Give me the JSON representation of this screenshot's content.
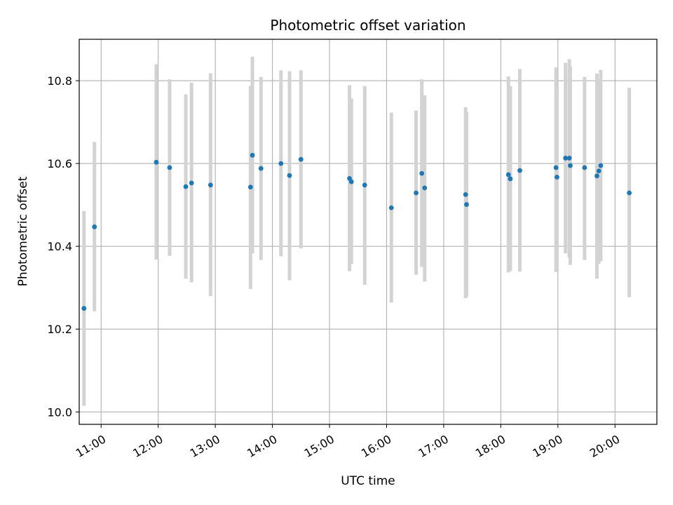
{
  "chart_data": {
    "type": "scatter",
    "title": "Photometric offset variation",
    "xlabel": "UTC time",
    "ylabel": "Photometric offset",
    "xlim": [
      "10:37",
      "20:44"
    ],
    "ylim": [
      9.97,
      10.9
    ],
    "grid": true,
    "x_ticks": [
      "11:00",
      "12:00",
      "13:00",
      "14:00",
      "15:00",
      "16:00",
      "17:00",
      "18:00",
      "19:00",
      "20:00"
    ],
    "y_ticks": [
      10.0,
      10.2,
      10.4,
      10.6,
      10.8
    ],
    "y_tick_labels": [
      "10.0",
      "10.2",
      "10.4",
      "10.6",
      "10.8"
    ],
    "point_color": "#1f77b4",
    "errorbar_color": "#d3d3d3",
    "points": [
      {
        "x": "10:42",
        "y": 10.25,
        "lo": 10.015,
        "hi": 10.485
      },
      {
        "x": "10:53",
        "y": 10.447,
        "lo": 10.243,
        "hi": 10.652
      },
      {
        "x": "11:58",
        "y": 10.603,
        "lo": 10.368,
        "hi": 10.84
      },
      {
        "x": "12:12",
        "y": 10.59,
        "lo": 10.377,
        "hi": 10.803
      },
      {
        "x": "12:29",
        "y": 10.544,
        "lo": 10.322,
        "hi": 10.767
      },
      {
        "x": "12:35",
        "y": 10.553,
        "lo": 10.313,
        "hi": 10.795
      },
      {
        "x": "12:55",
        "y": 10.548,
        "lo": 10.28,
        "hi": 10.818
      },
      {
        "x": "13:37",
        "y": 10.543,
        "lo": 10.297,
        "hi": 10.787
      },
      {
        "x": "13:39",
        "y": 10.62,
        "lo": 10.383,
        "hi": 10.858
      },
      {
        "x": "13:48",
        "y": 10.588,
        "lo": 10.367,
        "hi": 10.809
      },
      {
        "x": "14:09",
        "y": 10.6,
        "lo": 10.376,
        "hi": 10.825
      },
      {
        "x": "14:18",
        "y": 10.571,
        "lo": 10.318,
        "hi": 10.823
      },
      {
        "x": "14:30",
        "y": 10.61,
        "lo": 10.395,
        "hi": 10.825
      },
      {
        "x": "15:21",
        "y": 10.564,
        "lo": 10.34,
        "hi": 10.789
      },
      {
        "x": "15:23",
        "y": 10.556,
        "lo": 10.357,
        "hi": 10.757
      },
      {
        "x": "15:37",
        "y": 10.548,
        "lo": 10.307,
        "hi": 10.787
      },
      {
        "x": "16:05",
        "y": 10.493,
        "lo": 10.264,
        "hi": 10.723
      },
      {
        "x": "16:31",
        "y": 10.529,
        "lo": 10.331,
        "hi": 10.728
      },
      {
        "x": "16:37",
        "y": 10.576,
        "lo": 10.35,
        "hi": 10.803
      },
      {
        "x": "16:40",
        "y": 10.541,
        "lo": 10.315,
        "hi": 10.765
      },
      {
        "x": "17:23",
        "y": 10.525,
        "lo": 10.275,
        "hi": 10.736
      },
      {
        "x": "17:24",
        "y": 10.501,
        "lo": 10.278,
        "hi": 10.724
      },
      {
        "x": "18:08",
        "y": 10.573,
        "lo": 10.337,
        "hi": 10.81
      },
      {
        "x": "18:10",
        "y": 10.563,
        "lo": 10.34,
        "hi": 10.787
      },
      {
        "x": "18:20",
        "y": 10.583,
        "lo": 10.339,
        "hi": 10.828
      },
      {
        "x": "18:58",
        "y": 10.59,
        "lo": 10.338,
        "hi": 10.832
      },
      {
        "x": "18:59",
        "y": 10.567,
        "lo": 10.345,
        "hi": 10.788
      },
      {
        "x": "19:08",
        "y": 10.613,
        "lo": 10.383,
        "hi": 10.843
      },
      {
        "x": "19:12",
        "y": 10.613,
        "lo": 10.373,
        "hi": 10.852
      },
      {
        "x": "19:13",
        "y": 10.595,
        "lo": 10.355,
        "hi": 10.835
      },
      {
        "x": "19:28",
        "y": 10.59,
        "lo": 10.367,
        "hi": 10.809
      },
      {
        "x": "19:41",
        "y": 10.57,
        "lo": 10.322,
        "hi": 10.817
      },
      {
        "x": "19:43",
        "y": 10.582,
        "lo": 10.358,
        "hi": 10.805
      },
      {
        "x": "19:45",
        "y": 10.595,
        "lo": 10.364,
        "hi": 10.826
      },
      {
        "x": "20:15",
        "y": 10.529,
        "lo": 10.277,
        "hi": 10.783
      }
    ]
  }
}
